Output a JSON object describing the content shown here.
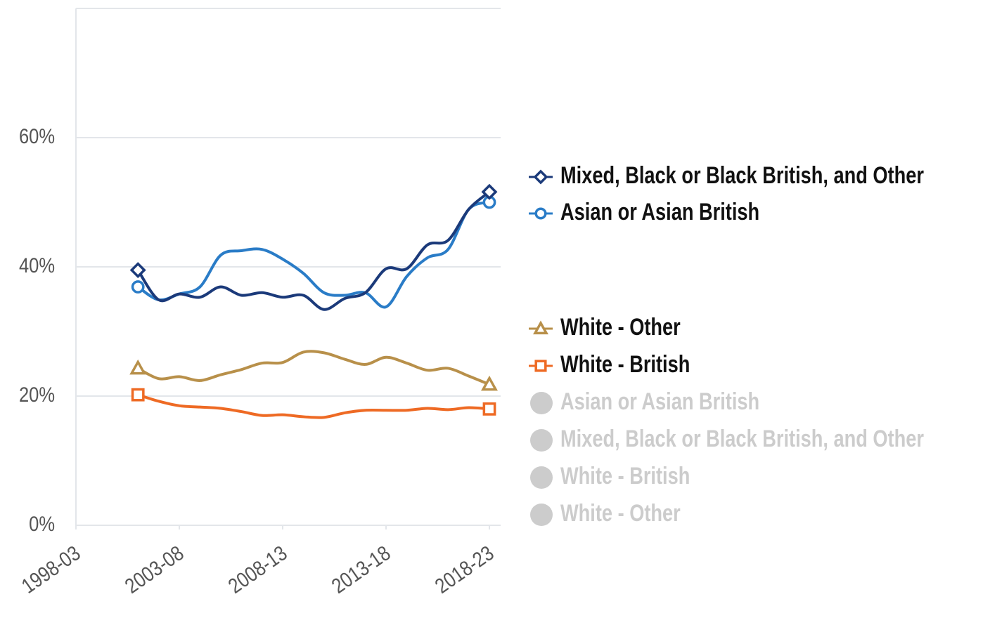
{
  "chart_data": {
    "type": "line",
    "x": [
      2001,
      2002,
      2003,
      2004,
      2005,
      2006,
      2007,
      2008,
      2009,
      2010,
      2011,
      2012,
      2013,
      2014,
      2015,
      2016,
      2017,
      2018
    ],
    "xlim": [
      1998,
      2018
    ],
    "xticks": [
      {
        "value": 1998,
        "label": "1998-03"
      },
      {
        "value": 2003,
        "label": "2003-08"
      },
      {
        "value": 2008,
        "label": "2008-13"
      },
      {
        "value": 2013,
        "label": "2013-18"
      },
      {
        "value": 2018,
        "label": "2018-23"
      }
    ],
    "ylim": [
      0,
      80
    ],
    "yticks": [
      {
        "value": 0,
        "label": "0%"
      },
      {
        "value": 20,
        "label": "20%"
      },
      {
        "value": 40,
        "label": "40%"
      },
      {
        "value": 60,
        "label": "60%"
      }
    ],
    "grid": true,
    "series": [
      {
        "name": "Mixed, Black or Black British, and Other",
        "color": "#1b3a7a",
        "marker": "diamond",
        "values": [
          39.5,
          34.9,
          35.8,
          35.3,
          36.9,
          35.6,
          36.0,
          35.3,
          35.6,
          33.4,
          35.1,
          36.0,
          39.7,
          39.7,
          43.4,
          44.1,
          48.9,
          51.6
        ]
      },
      {
        "name": "Asian or Asian British",
        "color": "#2a7cc7",
        "marker": "circle",
        "values": [
          36.9,
          34.9,
          35.8,
          36.9,
          41.8,
          42.5,
          42.7,
          41.2,
          39.0,
          36.0,
          35.6,
          36.0,
          33.8,
          38.5,
          41.4,
          42.7,
          48.9,
          50.0
        ]
      },
      {
        "name": "White - Other",
        "color": "#b8904a",
        "marker": "triangle",
        "values": [
          24.3,
          22.7,
          23.0,
          22.4,
          23.3,
          24.1,
          25.1,
          25.2,
          26.8,
          26.7,
          25.7,
          24.9,
          26.0,
          25.1,
          24.0,
          24.3,
          23.1,
          21.8
        ]
      },
      {
        "name": "White - British",
        "color": "#ee6a24",
        "marker": "square",
        "values": [
          20.2,
          19.2,
          18.5,
          18.3,
          18.1,
          17.6,
          17.0,
          17.1,
          16.8,
          16.7,
          17.4,
          17.8,
          17.8,
          17.8,
          18.1,
          17.9,
          18.2,
          18.0
        ]
      }
    ],
    "inactive_legend": [
      "Asian or Asian British",
      "Mixed, Black or Black British, and Other",
      "White - British",
      "White - Other"
    ]
  }
}
